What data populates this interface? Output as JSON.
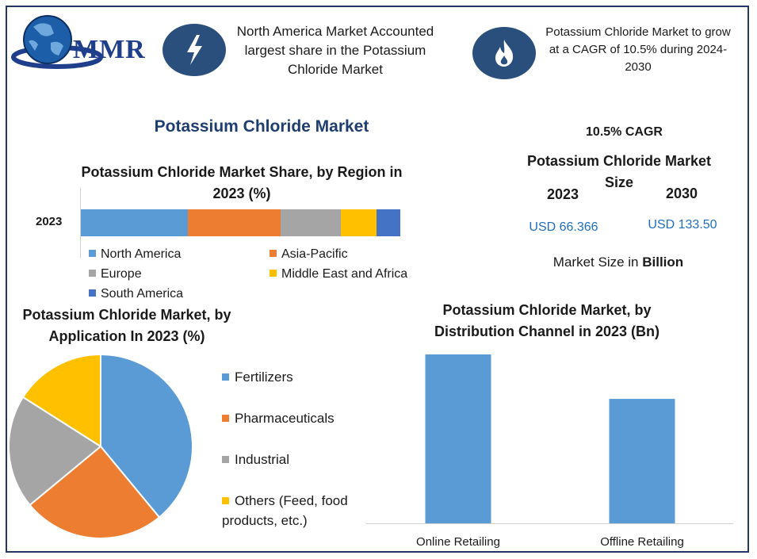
{
  "header": {
    "logo_text": "MMR",
    "info_1": "North America Market Accounted largest share in the Potassium Chloride Market",
    "info_2": "Potassium Chloride Market to grow at a CAGR of 10.5% during 2024-2030",
    "icon_1": "lightning-icon",
    "icon_2": "flame-icon",
    "icon_color": "#2a4f7c"
  },
  "main_title": "Potassium Chloride Market",
  "summary": {
    "cagr": "10.5% CAGR",
    "title": "Potassium Chloride Market Size",
    "year_1": "2023",
    "year_2": "2030",
    "value_1": "USD 66.366",
    "value_2": "USD 133.50",
    "unit_prefix": "Market Size in",
    "unit_bold": "Billion"
  },
  "chart_data": [
    {
      "type": "bar",
      "orientation": "horizontal-stacked",
      "title": "Potassium Chloride Market Share, by Region in 2023 (%)",
      "categories": [
        "2023"
      ],
      "series": [
        {
          "name": "North America",
          "values": [
            33.5
          ],
          "color": "#5b9bd5"
        },
        {
          "name": "Asia-Pacific",
          "values": [
            29
          ],
          "color": "#ed7d31"
        },
        {
          "name": "Europe",
          "values": [
            19
          ],
          "color": "#a5a5a5"
        },
        {
          "name": "Middle East and Africa",
          "values": [
            11
          ],
          "color": "#ffc000"
        },
        {
          "name": "South America",
          "values": [
            7.5
          ],
          "color": "#4472c4"
        }
      ],
      "legend": "bottom"
    },
    {
      "type": "pie",
      "title": "Potassium Chloride Market, by Application In 2023 (%)",
      "labels": [
        "Fertilizers",
        "Pharmaceuticals",
        "Industrial",
        "Others (Feed, food products, etc.)"
      ],
      "values": [
        39,
        25,
        20,
        16
      ],
      "colors": [
        "#5b9bd5",
        "#ed7d31",
        "#a5a5a5",
        "#ffc000"
      ],
      "legend": "right"
    },
    {
      "type": "bar",
      "title": "Potassium Chloride Market, by Distribution Channel in 2023 (Bn)",
      "categories": [
        "Online Retailing",
        "Offline Retailing"
      ],
      "values": [
        38,
        28
      ],
      "ylim": [
        0,
        38
      ],
      "color": "#5b9bd5",
      "grid": false
    }
  ]
}
